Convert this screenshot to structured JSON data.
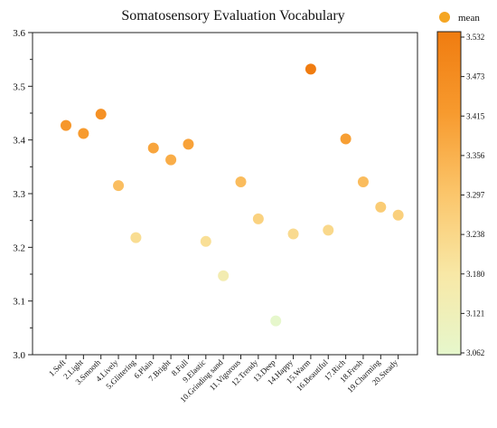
{
  "chart_data": {
    "type": "scatter",
    "title": "Somatosensory Evaluation Vocabulary",
    "xlabel": "",
    "ylabel": "",
    "ylim": [
      3.0,
      3.6
    ],
    "yticks": [
      "3.0",
      "3.1",
      "3.2",
      "3.3",
      "3.4",
      "3.5",
      "3.6"
    ],
    "legend": {
      "label": "mean",
      "position": "top-right",
      "marker_color": "#f5a623"
    },
    "categories": [
      "1.Soft",
      "2.Light",
      "3.Smooth",
      "4.Lively",
      "5.Glittering",
      "6.Plain",
      "7.Bright",
      "8.Full",
      "9.Elastic",
      "10.Grinding sand",
      "11.Vigorous",
      "12.Trendy",
      "13.Deep",
      "14.Happy",
      "15.Warm",
      "16.Beautiful",
      "17.Rich",
      "18.Fresh",
      "19.Charming",
      "20.Steady"
    ],
    "series": [
      {
        "name": "mean",
        "values": [
          3.427,
          3.412,
          3.448,
          3.315,
          3.218,
          3.385,
          3.363,
          3.392,
          3.211,
          3.147,
          3.322,
          3.253,
          3.063,
          3.225,
          3.532,
          3.232,
          3.402,
          3.322,
          3.275,
          3.26
        ]
      }
    ],
    "colorbar": {
      "ticks": [
        "3.532",
        "3.473",
        "3.415",
        "3.356",
        "3.297",
        "3.238",
        "3.180",
        "3.121",
        "3.062"
      ],
      "min": 3.062,
      "max": 3.532,
      "colors": [
        "#e6f7cc",
        "#f8e8a6",
        "#fbc56a",
        "#f79a2e",
        "#f07c10"
      ]
    }
  }
}
